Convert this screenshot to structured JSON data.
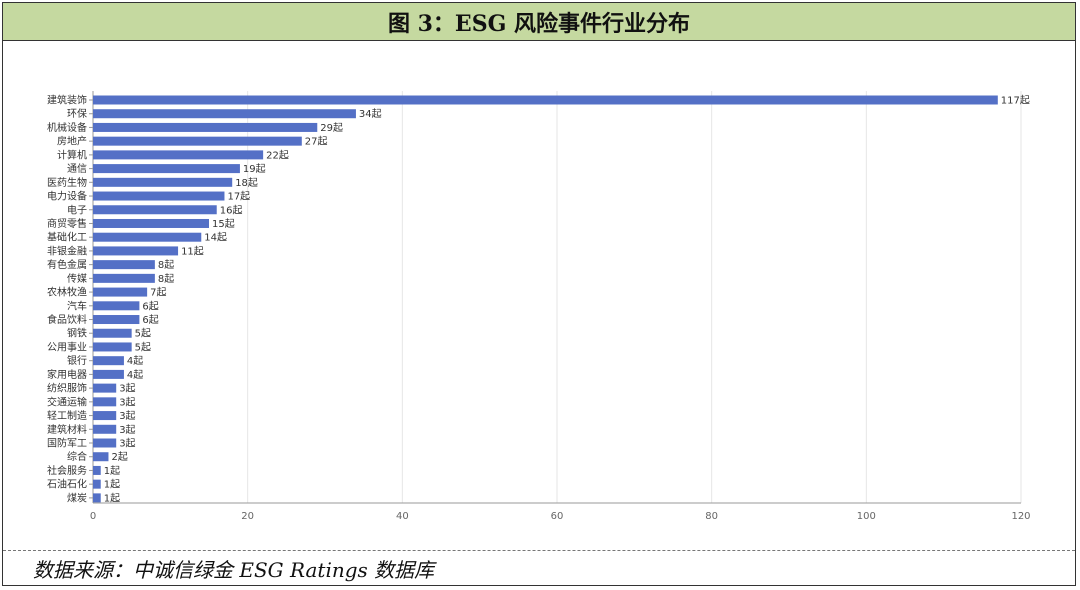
{
  "figure": {
    "title": "图 3：ESG 风险事件行业分布",
    "source": "数据来源：中诚信绿金 ESG Ratings 数据库"
  },
  "colors": {
    "bar": "#5470c6",
    "title_bg": "#c5d9a0",
    "grid": "#e6e6e6",
    "axis": "#999999"
  },
  "chart_data": {
    "type": "bar",
    "orientation": "horizontal",
    "categories": [
      "建筑装饰",
      "环保",
      "机械设备",
      "房地产",
      "计算机",
      "通信",
      "医药生物",
      "电力设备",
      "电子",
      "商贸零售",
      "基础化工",
      "非银金融",
      "有色金属",
      "传媒",
      "农林牧渔",
      "汽车",
      "食品饮料",
      "钢铁",
      "公用事业",
      "银行",
      "家用电器",
      "纺织服饰",
      "交通运输",
      "轻工制造",
      "建筑材料",
      "国防军工",
      "综合",
      "社会服务",
      "石油石化",
      "煤炭"
    ],
    "values": [
      117,
      34,
      29,
      27,
      22,
      19,
      18,
      17,
      16,
      15,
      14,
      11,
      8,
      8,
      7,
      6,
      6,
      5,
      5,
      4,
      4,
      3,
      3,
      3,
      3,
      3,
      2,
      1,
      1,
      1
    ],
    "value_labels": [
      "117起",
      "34起",
      "29起",
      "27起",
      "22起",
      "19起",
      "18起",
      "17起",
      "16起",
      "15起",
      "14起",
      "11起",
      "8起",
      "8起",
      "7起",
      "6起",
      "6起",
      "5起",
      "5起",
      "4起",
      "4起",
      "3起",
      "3起",
      "3起",
      "3起",
      "3起",
      "2起",
      "1起",
      "1起",
      "1起"
    ],
    "xlim": [
      0,
      120
    ],
    "xticks": [
      0,
      20,
      40,
      60,
      80,
      100,
      120
    ],
    "grid": true
  }
}
